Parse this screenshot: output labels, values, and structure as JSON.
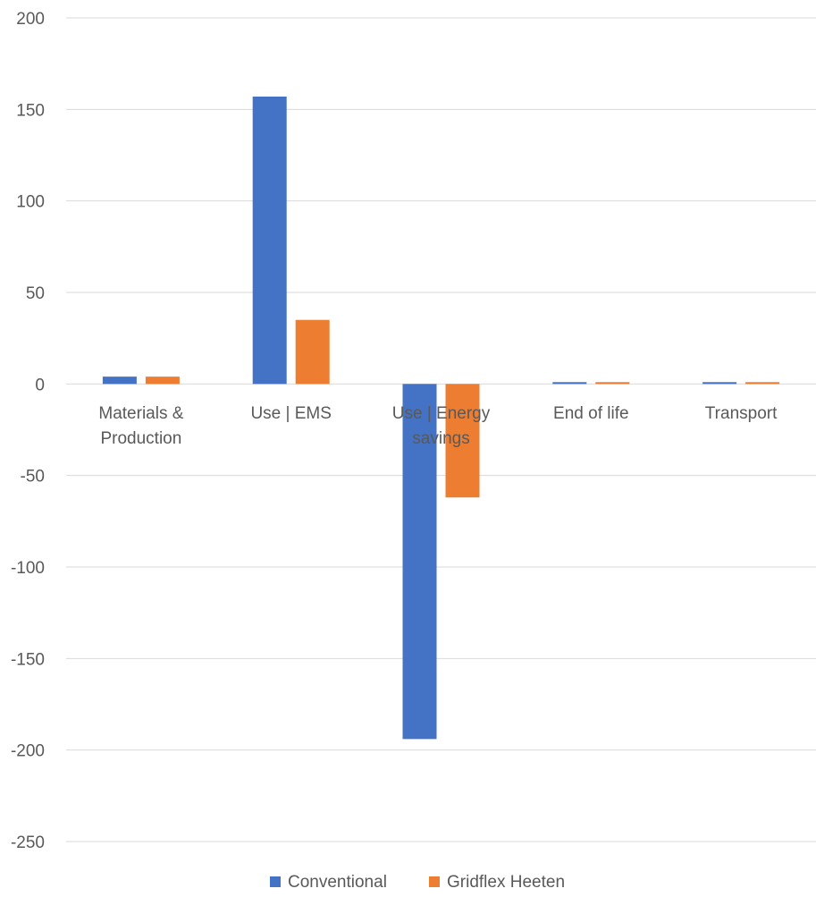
{
  "chart_data": {
    "type": "bar",
    "title": "",
    "xlabel": "",
    "ylabel": "",
    "ylim": [
      -250,
      200
    ],
    "ytick_step": 50,
    "y_ticks": [
      "200",
      "150",
      "100",
      "50",
      "0",
      "-50",
      "-100",
      "-150",
      "-200",
      "-250"
    ],
    "categories": [
      [
        "Materials &",
        "Production"
      ],
      [
        "Use | EMS"
      ],
      [
        "Use | Energy",
        "savings"
      ],
      [
        "End of life"
      ],
      [
        "Transport"
      ]
    ],
    "series": [
      {
        "name": "Conventional",
        "color": "#4472C4",
        "values": [
          4,
          157,
          -194,
          1,
          1
        ]
      },
      {
        "name": "Gridflex Heeten",
        "color": "#ED7D31",
        "values": [
          4,
          35,
          -62,
          1,
          1
        ]
      }
    ],
    "legend": "bottom",
    "grid": true
  }
}
